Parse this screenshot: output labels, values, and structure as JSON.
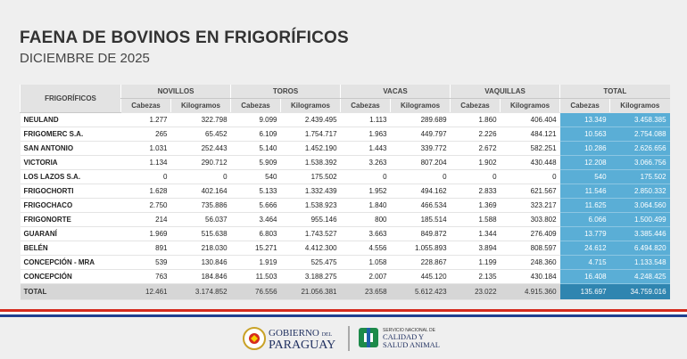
{
  "header": {
    "title": "FAENA DE BOVINOS EN FRIGORÍFICOS",
    "subtitle": "DICIEMBRE DE 2025"
  },
  "table": {
    "first_header": "FRIGORÍFICOS",
    "groups": [
      "NOVILLOS",
      "TOROS",
      "VACAS",
      "VAQUILLAS",
      "TOTAL"
    ],
    "subheaders": [
      "Cabezas",
      "Kilogramos",
      "Cabezas",
      "Kilogramos",
      "Cabezas",
      "Kilogramos",
      "Cabezas",
      "Kilogramos",
      "Cabezas",
      "Kilogramos"
    ],
    "rows": [
      [
        "NEULAND",
        "1.277",
        "322.798",
        "9.099",
        "2.439.495",
        "1.113",
        "289.689",
        "1.860",
        "406.404",
        "13.349",
        "3.458.385"
      ],
      [
        "FRIGOMERC S.A.",
        "265",
        "65.452",
        "6.109",
        "1.754.717",
        "1.963",
        "449.797",
        "2.226",
        "484.121",
        "10.563",
        "2.754.088"
      ],
      [
        "SAN ANTONIO",
        "1.031",
        "252.443",
        "5.140",
        "1.452.190",
        "1.443",
        "339.772",
        "2.672",
        "582.251",
        "10.286",
        "2.626.656"
      ],
      [
        "VICTORIA",
        "1.134",
        "290.712",
        "5.909",
        "1.538.392",
        "3.263",
        "807.204",
        "1.902",
        "430.448",
        "12.208",
        "3.066.756"
      ],
      [
        "LOS LAZOS S.A.",
        "0",
        "0",
        "540",
        "175.502",
        "0",
        "0",
        "0",
        "0",
        "540",
        "175.502"
      ],
      [
        "FRIGOCHORTI",
        "1.628",
        "402.164",
        "5.133",
        "1.332.439",
        "1.952",
        "494.162",
        "2.833",
        "621.567",
        "11.546",
        "2.850.332"
      ],
      [
        "FRIGOCHACO",
        "2.750",
        "735.886",
        "5.666",
        "1.538.923",
        "1.840",
        "466.534",
        "1.369",
        "323.217",
        "11.625",
        "3.064.560"
      ],
      [
        "FRIGONORTE",
        "214",
        "56.037",
        "3.464",
        "955.146",
        "800",
        "185.514",
        "1.588",
        "303.802",
        "6.066",
        "1.500.499"
      ],
      [
        "GUARANÍ",
        "1.969",
        "515.638",
        "6.803",
        "1.743.527",
        "3.663",
        "849.872",
        "1.344",
        "276.409",
        "13.779",
        "3.385.446"
      ],
      [
        "BELÉN",
        "891",
        "218.030",
        "15.271",
        "4.412.300",
        "4.556",
        "1.055.893",
        "3.894",
        "808.597",
        "24.612",
        "6.494.820"
      ],
      [
        "CONCEPCIÓN - MRA",
        "539",
        "130.846",
        "1.919",
        "525.475",
        "1.058",
        "228.867",
        "1.199",
        "248.360",
        "4.715",
        "1.133.548"
      ],
      [
        "CONCEPCIÓN",
        "763",
        "184.846",
        "11.503",
        "3.188.275",
        "2.007",
        "445.120",
        "2.135",
        "430.184",
        "16.408",
        "4.248.425"
      ]
    ],
    "total": [
      "TOTAL",
      "12.461",
      "3.174.852",
      "76.556",
      "21.056.381",
      "23.658",
      "5.612.423",
      "23.022",
      "4.915.360",
      "135.697",
      "34.759.016"
    ]
  },
  "footer": {
    "gov": [
      "GOBIERNO",
      "DEL",
      "PARAGUAY"
    ],
    "senacsa": [
      "SERVICIO NACIONAL DE",
      "CALIDAD Y",
      "SALUD ANIMAL"
    ]
  }
}
